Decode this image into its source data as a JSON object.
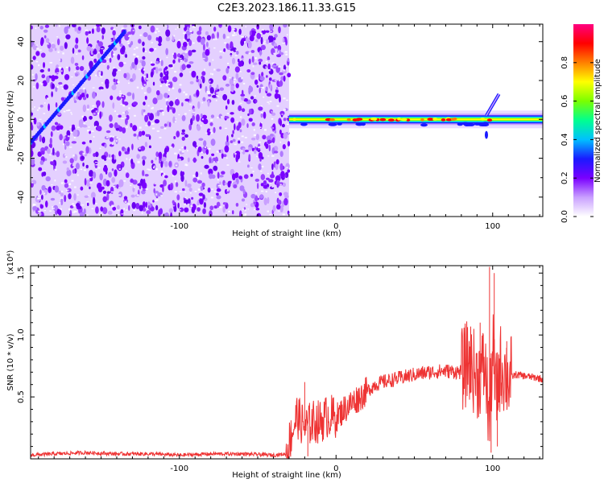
{
  "title": "C2E3.2023.186.11.33.G15",
  "chart_data": [
    {
      "type": "heatmap",
      "xlabel": "Height of straight line (km)",
      "ylabel": "Frequency (Hz)",
      "xlim": [
        -195,
        132
      ],
      "ylim": [
        -50,
        49
      ],
      "xticks": [
        -100,
        0,
        100
      ],
      "xtick_labels": [
        "-100",
        "0",
        "100"
      ],
      "yticks": [
        -40,
        -20,
        0,
        20,
        40
      ],
      "ytick_labels": [
        "-40",
        "-20",
        "0",
        "20",
        "40"
      ],
      "noise_region": [
        -195,
        -30
      ],
      "signal_line": {
        "x": [
          -30,
          100
        ],
        "frequency": 0
      },
      "diagonal_trace": {
        "x": [
          -195,
          -135
        ],
        "y": [
          -12,
          45
        ]
      },
      "late_trace": {
        "x": [
          96,
          104
        ],
        "y": [
          2,
          13
        ]
      },
      "colorbar": {
        "label": "Normalized spectral amplitude",
        "range": [
          0,
          1
        ],
        "ticks": [
          0.0,
          0.2,
          0.4,
          0.6,
          0.8
        ],
        "tick_labels": [
          "0.0",
          "0.2",
          "0.4",
          "0.6",
          "0.8"
        ],
        "colors": [
          "#ffffff",
          "#c9a0ff",
          "#7a00ff",
          "#1a1aff",
          "#00c0ff",
          "#00ff90",
          "#7aff00",
          "#ffff00",
          "#ff8000",
          "#ff0000",
          "#ff0080"
        ]
      },
      "grid": false
    },
    {
      "type": "line",
      "xlabel": "Height of straight line (km)",
      "ylabel": "SNR (10 * v/v)",
      "y_multiplier": "(x10⁴)",
      "xlim": [
        -195,
        132
      ],
      "ylim": [
        0.0,
        1.56
      ],
      "xticks": [
        -100,
        0,
        100
      ],
      "xtick_labels": [
        "-100",
        "0",
        "100"
      ],
      "yticks": [
        0.5,
        1.0,
        1.5
      ],
      "ytick_labels": [
        "0.5",
        "1.0",
        "1.5"
      ],
      "series": [
        {
          "color": "#ee3333",
          "x": [
            -195,
            -180,
            -160,
            -140,
            -120,
            -100,
            -80,
            -60,
            -40,
            -32,
            -25,
            -20,
            -15,
            -10,
            -5,
            0,
            5,
            10,
            15,
            20,
            25,
            30,
            40,
            50,
            60,
            70,
            80,
            85,
            90,
            95,
            98,
            100,
            102,
            105,
            110,
            115,
            120,
            125,
            130,
            132
          ],
          "y": [
            0.03,
            0.04,
            0.05,
            0.04,
            0.04,
            0.03,
            0.04,
            0.04,
            0.03,
            0.04,
            0.35,
            0.25,
            0.3,
            0.3,
            0.35,
            0.33,
            0.4,
            0.45,
            0.5,
            0.55,
            0.6,
            0.62,
            0.65,
            0.68,
            0.7,
            0.71,
            0.7,
            0.8,
            0.65,
            0.75,
            0.3,
            0.9,
            0.5,
            0.75,
            0.65,
            0.68,
            0.67,
            0.66,
            0.65,
            0.64
          ]
        }
      ],
      "peaks": [
        {
          "x": 86,
          "y": 1.0
        },
        {
          "x": 92,
          "y": 1.1
        },
        {
          "x": 98,
          "y": 1.55
        },
        {
          "x": 99,
          "y": 0.05
        },
        {
          "x": 101,
          "y": 1.5
        },
        {
          "x": 103,
          "y": 0.1
        },
        {
          "x": 109,
          "y": 0.95
        },
        {
          "x": -20,
          "y": 0.62
        },
        {
          "x": -18,
          "y": 0.02
        }
      ],
      "grid": false
    }
  ]
}
